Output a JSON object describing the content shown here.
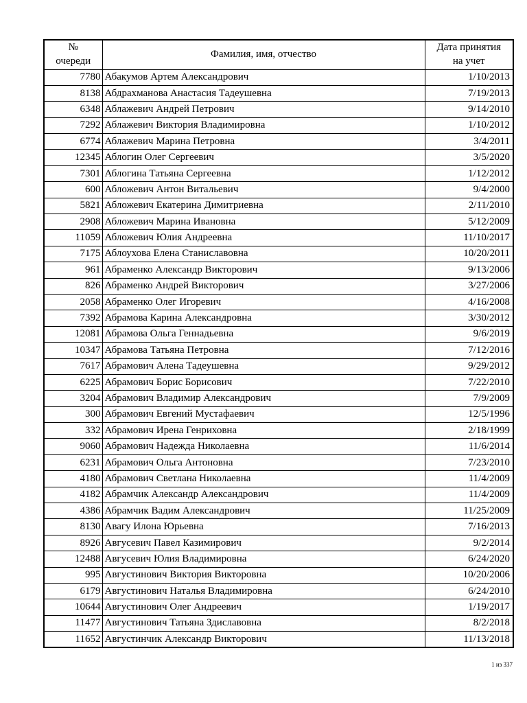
{
  "table": {
    "columns": [
      {
        "label": "№\nочереди"
      },
      {
        "label": "Фамилия, имя, отчество"
      },
      {
        "label": "Дата принятия\nна учет"
      }
    ],
    "rows": [
      {
        "queue_number": "7780",
        "full_name": "Абакумов Артем Александрович",
        "date": "1/10/2013"
      },
      {
        "queue_number": "8138",
        "full_name": "Абдрахманова Анастасия Тадеушевна",
        "date": "7/19/2013"
      },
      {
        "queue_number": "6348",
        "full_name": "Аблажевич Андрей Петрович",
        "date": "9/14/2010"
      },
      {
        "queue_number": "7292",
        "full_name": "Аблажевич Виктория Владимировна",
        "date": "1/10/2012"
      },
      {
        "queue_number": "6774",
        "full_name": "Аблажевич Марина Петровна",
        "date": "3/4/2011"
      },
      {
        "queue_number": "12345",
        "full_name": "Аблогин Олег Сергеевич",
        "date": "3/5/2020"
      },
      {
        "queue_number": "7301",
        "full_name": "Аблогина Татьяна Сергеевна",
        "date": "1/12/2012"
      },
      {
        "queue_number": "600",
        "full_name": "Абложевич Антон Витальевич",
        "date": "9/4/2000"
      },
      {
        "queue_number": "5821",
        "full_name": "Абложевич Екатерина Димитриевна",
        "date": "2/11/2010"
      },
      {
        "queue_number": "2908",
        "full_name": "Абложевич Марина Ивановна",
        "date": "5/12/2009"
      },
      {
        "queue_number": "11059",
        "full_name": "Абложевич Юлия Андреевна",
        "date": "11/10/2017"
      },
      {
        "queue_number": "7175",
        "full_name": "Аблоухова Елена Станиславовна",
        "date": "10/20/2011"
      },
      {
        "queue_number": "961",
        "full_name": "Абраменко Александр Викторович",
        "date": "9/13/2006"
      },
      {
        "queue_number": "826",
        "full_name": "Абраменко Андрей Викторович",
        "date": "3/27/2006"
      },
      {
        "queue_number": "2058",
        "full_name": "Абраменко Олег Игоревич",
        "date": "4/16/2008"
      },
      {
        "queue_number": "7392",
        "full_name": "Абрамова Карина Александровна",
        "date": "3/30/2012"
      },
      {
        "queue_number": "12081",
        "full_name": "Абрамова Ольга Геннадьевна",
        "date": "9/6/2019"
      },
      {
        "queue_number": "10347",
        "full_name": "Абрамова Татьяна Петровна",
        "date": "7/12/2016"
      },
      {
        "queue_number": "7617",
        "full_name": "Абрамович Алена Тадеушевна",
        "date": "9/29/2012"
      },
      {
        "queue_number": "6225",
        "full_name": "Абрамович Борис Борисович",
        "date": "7/22/2010"
      },
      {
        "queue_number": "3204",
        "full_name": "Абрамович Владимир Александрович",
        "date": "7/9/2009"
      },
      {
        "queue_number": "300",
        "full_name": "Абрамович Евгений Мустафаевич",
        "date": "12/5/1996"
      },
      {
        "queue_number": "332",
        "full_name": "Абрамович Ирена Генриховна",
        "date": "2/18/1999"
      },
      {
        "queue_number": "9060",
        "full_name": "Абрамович Надежда Николаевна",
        "date": "11/6/2014"
      },
      {
        "queue_number": "6231",
        "full_name": "Абрамович Ольга Антоновна",
        "date": "7/23/2010"
      },
      {
        "queue_number": "4180",
        "full_name": "Абрамович Светлана Николаевна",
        "date": "11/4/2009"
      },
      {
        "queue_number": "4182",
        "full_name": "Абрамчик Александр Александрович",
        "date": "11/4/2009"
      },
      {
        "queue_number": "4386",
        "full_name": "Абрамчик Вадим Александрович",
        "date": "11/25/2009"
      },
      {
        "queue_number": "8130",
        "full_name": "Авагу Илона Юрьевна",
        "date": "7/16/2013"
      },
      {
        "queue_number": "8926",
        "full_name": "Авгусевич Павел Казимирович",
        "date": "9/2/2014"
      },
      {
        "queue_number": "12488",
        "full_name": "Авгусевич Юлия Владимировна",
        "date": "6/24/2020"
      },
      {
        "queue_number": "995",
        "full_name": "Августинович Виктория Викторовна",
        "date": "10/20/2006"
      },
      {
        "queue_number": "6179",
        "full_name": "Августинович Наталья Владимировна",
        "date": "6/24/2010"
      },
      {
        "queue_number": "10644",
        "full_name": "Августинович Олег Андреевич",
        "date": "1/19/2017"
      },
      {
        "queue_number": "11477",
        "full_name": "Августинович Татьяна Здиславовна",
        "date": "8/2/2018"
      },
      {
        "queue_number": "11652",
        "full_name": "Августинчик Александр Викторович",
        "date": "11/13/2018"
      }
    ]
  },
  "footer": {
    "page_indicator": "1 из 337"
  },
  "colors": {
    "background": "#ffffff",
    "text": "#000000",
    "border": "#000000"
  }
}
